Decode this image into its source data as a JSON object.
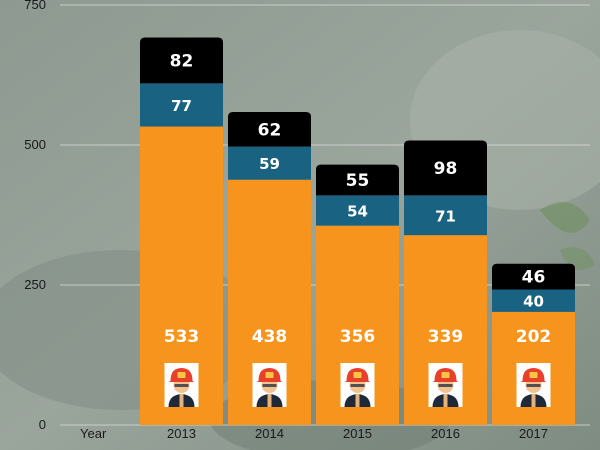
{
  "colors": {
    "bottom_segment": "#F7941D",
    "middle_segment": "#1A6282",
    "top_segment": "#000000",
    "grid": "#D9D9D9",
    "axis_text": "#1A1A1A",
    "label_text": "#FFFFFF"
  },
  "icon": "firefighter-helmet-icon",
  "chart_data": {
    "type": "bar",
    "stacked": true,
    "title": "",
    "xlabel": "Year",
    "ylabel": "",
    "ylim": [
      0,
      750
    ],
    "yticks": [
      "0",
      "250",
      "500",
      "750"
    ],
    "grid": true,
    "legend": "none",
    "categories": [
      "2013",
      "2014",
      "2015",
      "2016",
      "2017"
    ],
    "series": [
      {
        "values": [
          533,
          438,
          356,
          339,
          202
        ]
      },
      {
        "values": [
          77,
          59,
          54,
          71,
          40
        ]
      },
      {
        "values": [
          82,
          62,
          55,
          98,
          46
        ]
      }
    ]
  }
}
